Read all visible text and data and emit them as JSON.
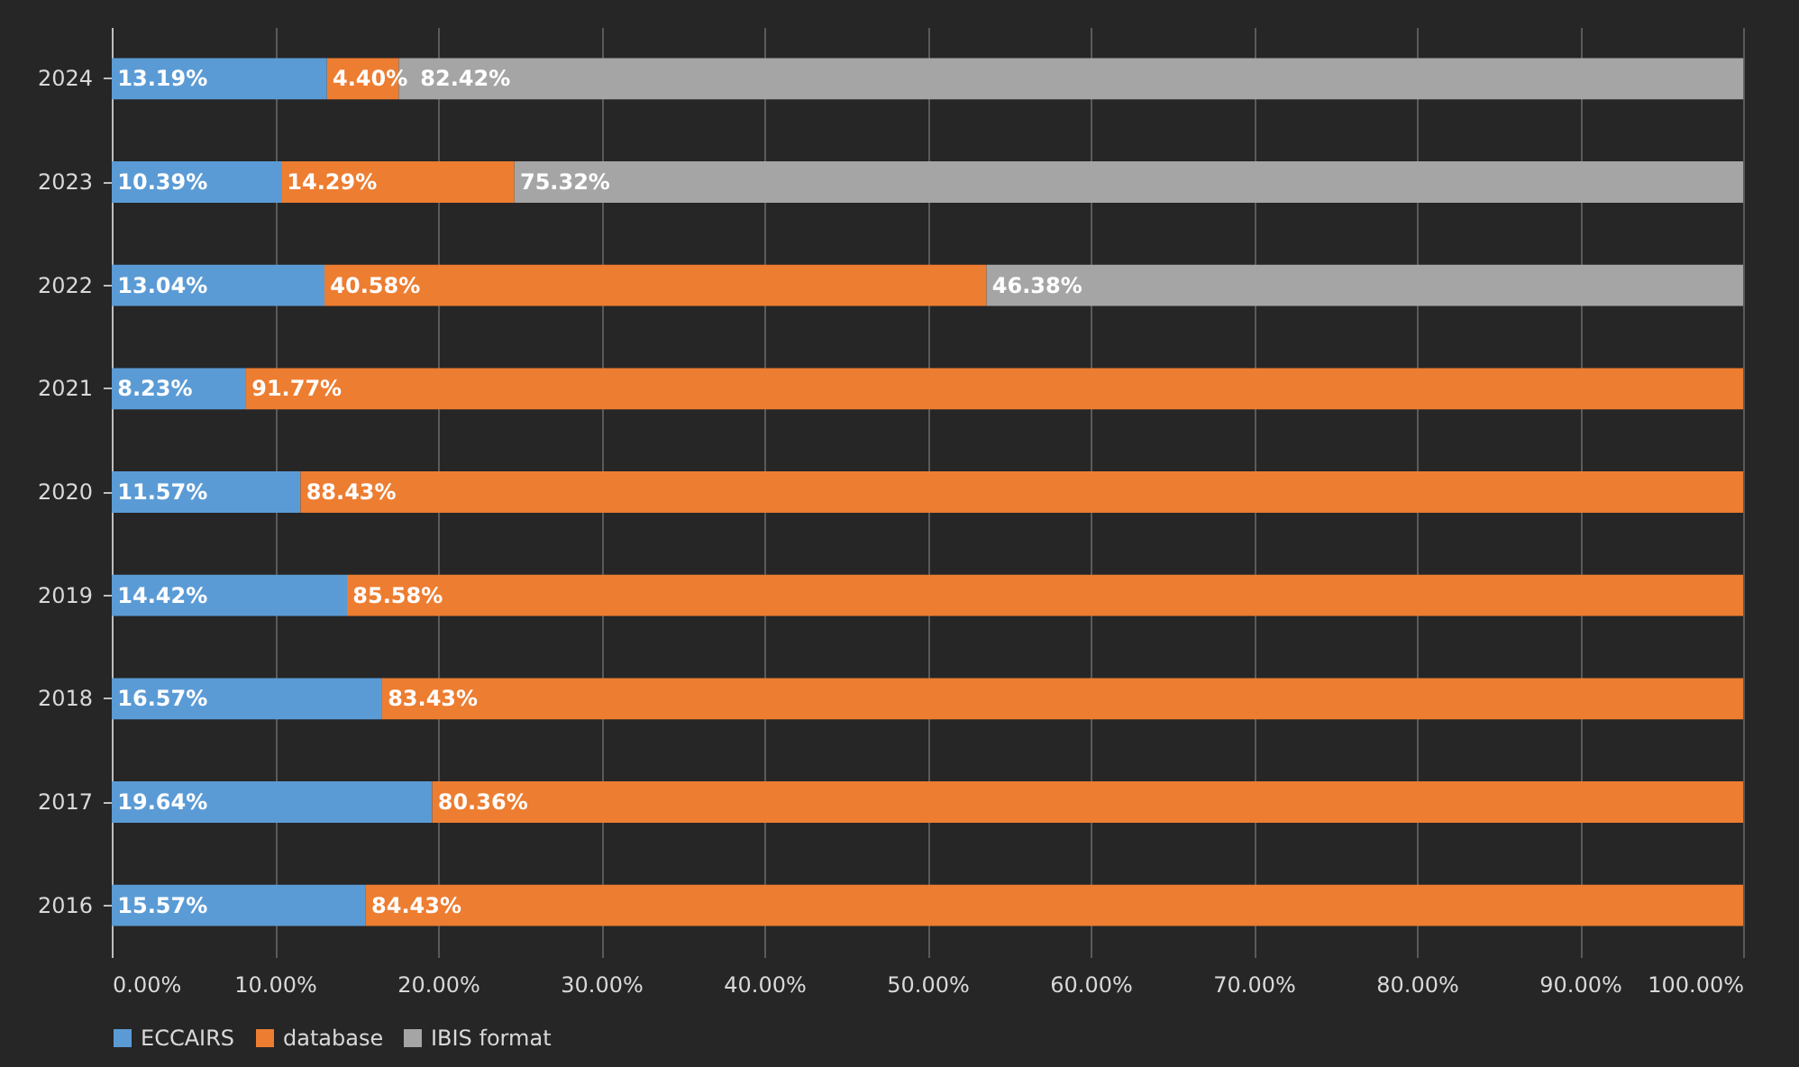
{
  "chart_data": {
    "type": "bar",
    "orientation": "horizontal",
    "stacked": true,
    "categories": [
      "2024",
      "2023",
      "2022",
      "2021",
      "2020",
      "2019",
      "2018",
      "2017",
      "2016"
    ],
    "series": [
      {
        "name": "ECCAIRS",
        "color": "#5b9bd5",
        "values": [
          13.19,
          10.39,
          13.04,
          8.23,
          11.57,
          14.42,
          16.57,
          19.64,
          15.57
        ],
        "value_labels": [
          "13.19%",
          "10.39%",
          "13.04%",
          "8.23%",
          "11.57%",
          "14.42%",
          "16.57%",
          "19.64%",
          "15.57%"
        ]
      },
      {
        "name": "database",
        "color": "#ed7d31",
        "values": [
          4.4,
          14.29,
          40.58,
          91.77,
          88.43,
          85.58,
          83.43,
          80.36,
          84.43
        ],
        "value_labels": [
          "4.40%",
          "14.29%",
          "40.58%",
          "91.77%",
          "88.43%",
          "85.58%",
          "83.43%",
          "80.36%",
          "84.43%"
        ]
      },
      {
        "name": "IBIS format",
        "color": "#a5a5a5",
        "values": [
          82.42,
          75.32,
          46.38,
          null,
          null,
          null,
          null,
          null,
          null
        ],
        "value_labels": [
          "82.42%",
          "75.32%",
          "46.38%",
          null,
          null,
          null,
          null,
          null,
          null
        ]
      }
    ],
    "xlim": [
      0,
      100
    ],
    "xticks": [
      {
        "value": 0,
        "label": "0.00%"
      },
      {
        "value": 10,
        "label": "10.00%"
      },
      {
        "value": 20,
        "label": "20.00%"
      },
      {
        "value": 30,
        "label": "30.00%"
      },
      {
        "value": 40,
        "label": "40.00%"
      },
      {
        "value": 50,
        "label": "50.00%"
      },
      {
        "value": 60,
        "label": "60.00%"
      },
      {
        "value": 70,
        "label": "70.00%"
      },
      {
        "value": 80,
        "label": "80.00%"
      },
      {
        "value": 90,
        "label": "90.00%"
      },
      {
        "value": 100,
        "label": "100.00%"
      }
    ],
    "grid": "x",
    "legend": "bottom"
  }
}
